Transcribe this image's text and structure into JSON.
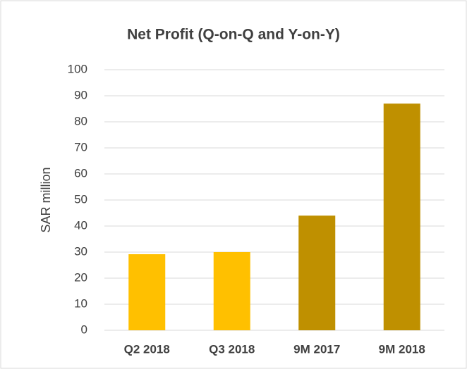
{
  "chart_data": {
    "type": "bar",
    "title": "Net Profit (Q-on-Q and Y-on-Y)",
    "y_label": "SAR million",
    "categories": [
      "Q2 2018",
      "Q3 2018",
      "9M 2017",
      "9M 2018"
    ],
    "values": [
      29.2,
      30,
      44,
      87
    ],
    "colors": [
      "#ffc000",
      "#ffc000",
      "#bf9000",
      "#bf9000"
    ],
    "ylim": [
      0,
      100
    ],
    "yticks": [
      0,
      10,
      20,
      30,
      40,
      50,
      60,
      70,
      80,
      90,
      100
    ],
    "grid": true
  }
}
